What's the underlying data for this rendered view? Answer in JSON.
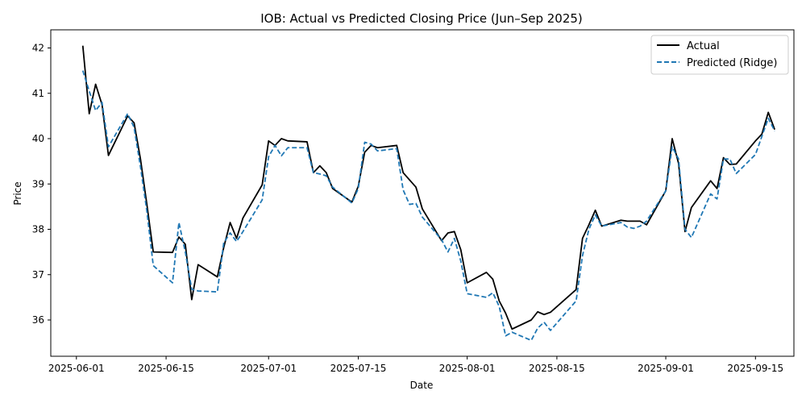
{
  "chart_data": {
    "type": "line",
    "title": "IOB: Actual vs Predicted Closing Price (Jun–Sep 2025)",
    "xlabel": "Date",
    "ylabel": "Price",
    "xlim": [
      "2025-05-28",
      "2025-09-21"
    ],
    "ylim": [
      35.2,
      42.4
    ],
    "grid": false,
    "legend_position": "top-right",
    "x_ticks": [
      "2025-06-01",
      "2025-06-15",
      "2025-07-01",
      "2025-07-15",
      "2025-08-01",
      "2025-08-15",
      "2025-09-01",
      "2025-09-15"
    ],
    "y_ticks": [
      36,
      37,
      38,
      39,
      40,
      41,
      42
    ],
    "series": [
      {
        "name": "Actual",
        "color": "#000000",
        "style": "solid",
        "points": [
          [
            "2025-06-02",
            42.05
          ],
          [
            "2025-06-03",
            40.55
          ],
          [
            "2025-06-04",
            41.2
          ],
          [
            "2025-06-05",
            40.75
          ],
          [
            "2025-06-06",
            39.63
          ],
          [
            "2025-06-09",
            40.5
          ],
          [
            "2025-06-10",
            40.35
          ],
          [
            "2025-06-11",
            39.55
          ],
          [
            "2025-06-12",
            38.55
          ],
          [
            "2025-06-13",
            37.5
          ],
          [
            "2025-06-16",
            37.49
          ],
          [
            "2025-06-17",
            37.83
          ],
          [
            "2025-06-18",
            37.67
          ],
          [
            "2025-06-19",
            36.45
          ],
          [
            "2025-06-20",
            37.22
          ],
          [
            "2025-06-23",
            36.95
          ],
          [
            "2025-06-24",
            37.6
          ],
          [
            "2025-06-25",
            38.15
          ],
          [
            "2025-06-26",
            37.8
          ],
          [
            "2025-06-27",
            38.25
          ],
          [
            "2025-06-30",
            38.98
          ],
          [
            "2025-07-01",
            39.95
          ],
          [
            "2025-07-02",
            39.85
          ],
          [
            "2025-07-03",
            40.0
          ],
          [
            "2025-07-04",
            39.95
          ],
          [
            "2025-07-07",
            39.93
          ],
          [
            "2025-07-08",
            39.25
          ],
          [
            "2025-07-09",
            39.4
          ],
          [
            "2025-07-10",
            39.25
          ],
          [
            "2025-07-11",
            38.9
          ],
          [
            "2025-07-14",
            38.6
          ],
          [
            "2025-07-15",
            38.95
          ],
          [
            "2025-07-16",
            39.7
          ],
          [
            "2025-07-17",
            39.85
          ],
          [
            "2025-07-18",
            39.8
          ],
          [
            "2025-07-21",
            39.85
          ],
          [
            "2025-07-22",
            39.25
          ],
          [
            "2025-07-24",
            38.93
          ],
          [
            "2025-07-25",
            38.45
          ],
          [
            "2025-07-28",
            37.75
          ],
          [
            "2025-07-29",
            37.92
          ],
          [
            "2025-07-30",
            37.95
          ],
          [
            "2025-07-31",
            37.55
          ],
          [
            "2025-08-01",
            36.82
          ],
          [
            "2025-08-04",
            37.05
          ],
          [
            "2025-08-05",
            36.9
          ],
          [
            "2025-08-06",
            36.42
          ],
          [
            "2025-08-07",
            36.15
          ],
          [
            "2025-08-08",
            35.8
          ],
          [
            "2025-08-11",
            36.0
          ],
          [
            "2025-08-12",
            36.18
          ],
          [
            "2025-08-13",
            36.12
          ],
          [
            "2025-08-14",
            36.17
          ],
          [
            "2025-08-18",
            36.67
          ],
          [
            "2025-08-19",
            37.8
          ],
          [
            "2025-08-20",
            38.1
          ],
          [
            "2025-08-21",
            38.42
          ],
          [
            "2025-08-22",
            38.07
          ],
          [
            "2025-08-25",
            38.2
          ],
          [
            "2025-08-26",
            38.18
          ],
          [
            "2025-08-28",
            38.18
          ],
          [
            "2025-08-29",
            38.1
          ],
          [
            "2025-09-01",
            38.85
          ],
          [
            "2025-09-02",
            40.0
          ],
          [
            "2025-09-03",
            39.45
          ],
          [
            "2025-09-04",
            37.95
          ],
          [
            "2025-09-05",
            38.48
          ],
          [
            "2025-09-08",
            39.07
          ],
          [
            "2025-09-09",
            38.9
          ],
          [
            "2025-09-10",
            39.58
          ],
          [
            "2025-09-11",
            39.43
          ],
          [
            "2025-09-12",
            39.44
          ],
          [
            "2025-09-15",
            39.95
          ],
          [
            "2025-09-16",
            40.1
          ],
          [
            "2025-09-17",
            40.58
          ],
          [
            "2025-09-18",
            40.2
          ]
        ]
      },
      {
        "name": "Predicted (Ridge)",
        "color": "#1f77b4",
        "style": "dashed",
        "points": [
          [
            "2025-06-02",
            41.5
          ],
          [
            "2025-06-03",
            41.05
          ],
          [
            "2025-06-04",
            40.62
          ],
          [
            "2025-06-05",
            40.8
          ],
          [
            "2025-06-06",
            39.82
          ],
          [
            "2025-06-09",
            40.55
          ],
          [
            "2025-06-10",
            40.25
          ],
          [
            "2025-06-11",
            39.38
          ],
          [
            "2025-06-12",
            38.4
          ],
          [
            "2025-06-13",
            37.2
          ],
          [
            "2025-06-16",
            36.82
          ],
          [
            "2025-06-17",
            38.15
          ],
          [
            "2025-06-18",
            37.5
          ],
          [
            "2025-06-19",
            36.68
          ],
          [
            "2025-06-20",
            36.64
          ],
          [
            "2025-06-23",
            36.62
          ],
          [
            "2025-06-24",
            37.7
          ],
          [
            "2025-06-25",
            37.92
          ],
          [
            "2025-06-26",
            37.73
          ],
          [
            "2025-06-27",
            37.95
          ],
          [
            "2025-06-30",
            38.65
          ],
          [
            "2025-07-01",
            39.6
          ],
          [
            "2025-07-02",
            39.85
          ],
          [
            "2025-07-03",
            39.62
          ],
          [
            "2025-07-04",
            39.8
          ],
          [
            "2025-07-07",
            39.8
          ],
          [
            "2025-07-08",
            39.25
          ],
          [
            "2025-07-09",
            39.22
          ],
          [
            "2025-07-10",
            39.18
          ],
          [
            "2025-07-11",
            38.93
          ],
          [
            "2025-07-14",
            38.58
          ],
          [
            "2025-07-15",
            38.9
          ],
          [
            "2025-07-16",
            39.92
          ],
          [
            "2025-07-17",
            39.88
          ],
          [
            "2025-07-18",
            39.73
          ],
          [
            "2025-07-21",
            39.78
          ],
          [
            "2025-07-22",
            38.87
          ],
          [
            "2025-07-23",
            38.55
          ],
          [
            "2025-07-24",
            38.57
          ],
          [
            "2025-07-25",
            38.27
          ],
          [
            "2025-07-28",
            37.77
          ],
          [
            "2025-07-29",
            37.5
          ],
          [
            "2025-07-30",
            37.8
          ],
          [
            "2025-07-31",
            37.3
          ],
          [
            "2025-08-01",
            36.58
          ],
          [
            "2025-08-04",
            36.5
          ],
          [
            "2025-08-05",
            36.6
          ],
          [
            "2025-08-06",
            36.3
          ],
          [
            "2025-08-07",
            35.65
          ],
          [
            "2025-08-08",
            35.73
          ],
          [
            "2025-08-11",
            35.55
          ],
          [
            "2025-08-12",
            35.82
          ],
          [
            "2025-08-13",
            35.95
          ],
          [
            "2025-08-14",
            35.77
          ],
          [
            "2025-08-18",
            36.42
          ],
          [
            "2025-08-19",
            37.42
          ],
          [
            "2025-08-20",
            38.0
          ],
          [
            "2025-08-21",
            38.32
          ],
          [
            "2025-08-22",
            38.07
          ],
          [
            "2025-08-25",
            38.15
          ],
          [
            "2025-08-26",
            38.05
          ],
          [
            "2025-08-27",
            38.02
          ],
          [
            "2025-08-28",
            38.07
          ],
          [
            "2025-08-29",
            38.18
          ],
          [
            "2025-09-01",
            38.85
          ],
          [
            "2025-09-02",
            39.82
          ],
          [
            "2025-09-03",
            39.55
          ],
          [
            "2025-09-04",
            38.0
          ],
          [
            "2025-09-05",
            37.82
          ],
          [
            "2025-09-08",
            38.78
          ],
          [
            "2025-09-09",
            38.67
          ],
          [
            "2025-09-10",
            39.55
          ],
          [
            "2025-09-11",
            39.55
          ],
          [
            "2025-09-12",
            39.23
          ],
          [
            "2025-09-15",
            39.65
          ],
          [
            "2025-09-16",
            40.05
          ],
          [
            "2025-09-17",
            40.45
          ],
          [
            "2025-09-18",
            40.17
          ]
        ]
      }
    ]
  }
}
